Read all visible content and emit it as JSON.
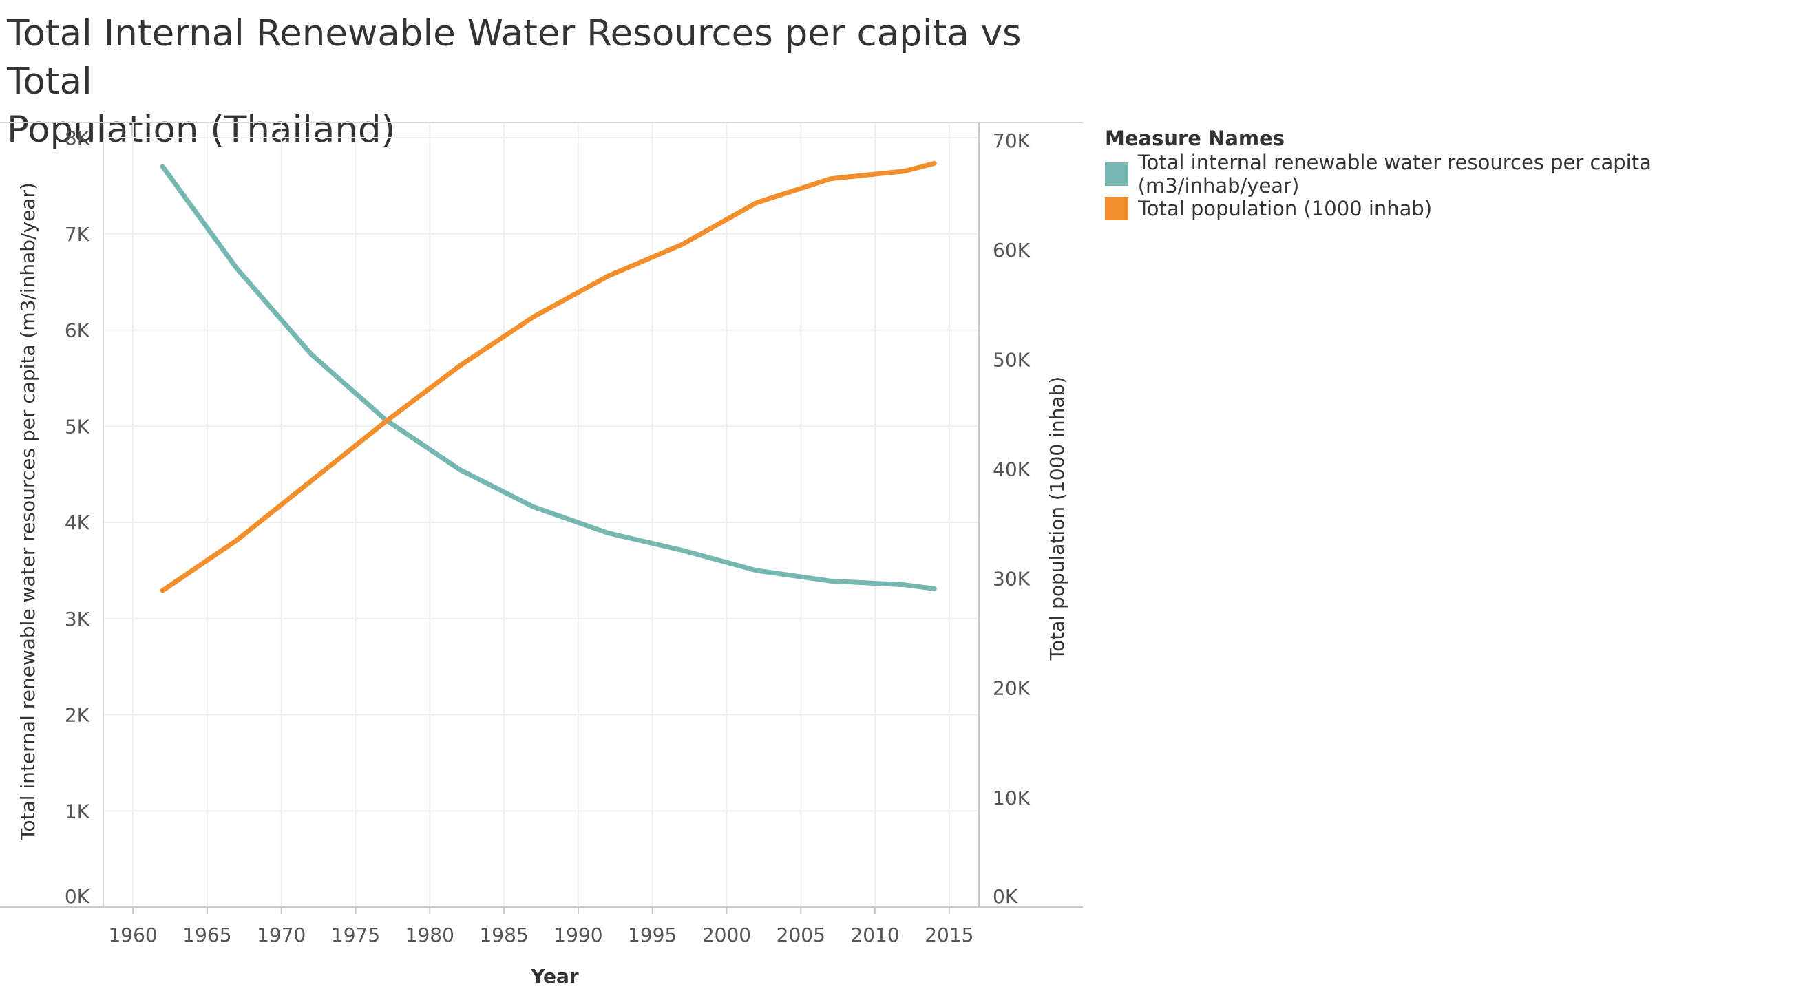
{
  "title": {
    "line1": "Total Internal Renewable Water Resources per capita vs Total",
    "line2": "Population (Thailand)"
  },
  "legend": {
    "title": "Measure Names",
    "items": [
      {
        "label": "Total internal renewable water resources per capita (m3/inhab/year)",
        "color": "#76b7b2"
      },
      {
        "label": "Total population (1000 inhab)",
        "color": "#f28e2b"
      }
    ]
  },
  "chart_data": {
    "type": "line",
    "title": "Total Internal Renewable Water Resources per capita vs Total Population (Thailand)",
    "xlabel": "Year",
    "ylabel_left": "Total internal renewable water resources per capita (m3/inhab/year)",
    "ylabel_right": "Total population (1000 inhab)",
    "xlim": [
      1958,
      2017
    ],
    "x_ticks": [
      1960,
      1965,
      1970,
      1975,
      1980,
      1985,
      1990,
      1995,
      2000,
      2005,
      2010,
      2015
    ],
    "ylim_left": [
      0,
      8000
    ],
    "ylim_right": [
      0,
      70000
    ],
    "y_ticks_left": [
      "0K",
      "1K",
      "2K",
      "3K",
      "4K",
      "5K",
      "6K",
      "7K",
      "8K"
    ],
    "y_ticks_right": [
      "0K",
      "10K",
      "20K",
      "30K",
      "40K",
      "50K",
      "60K",
      "70K"
    ],
    "grid": true,
    "legend_position": "right",
    "series": [
      {
        "name": "Total internal renewable water resources per capita (m3/inhab/year)",
        "axis": "left",
        "color": "#76b7b2",
        "x": [
          1962,
          1967,
          1972,
          1977,
          1982,
          1987,
          1992,
          1997,
          2002,
          2007,
          2012,
          2014
        ],
        "y": [
          7700,
          6640,
          5750,
          5070,
          4550,
          4160,
          3890,
          3710,
          3500,
          3390,
          3350,
          3310
        ]
      },
      {
        "name": "Total population (1000 inhab)",
        "axis": "right",
        "color": "#f28e2b",
        "x": [
          1962,
          1967,
          1972,
          1977,
          1982,
          1987,
          1992,
          1997,
          2002,
          2007,
          2012,
          2014
        ],
        "y": [
          28900,
          33500,
          38900,
          44300,
          49400,
          53900,
          57600,
          60500,
          64300,
          66500,
          67200,
          67900
        ]
      }
    ]
  }
}
